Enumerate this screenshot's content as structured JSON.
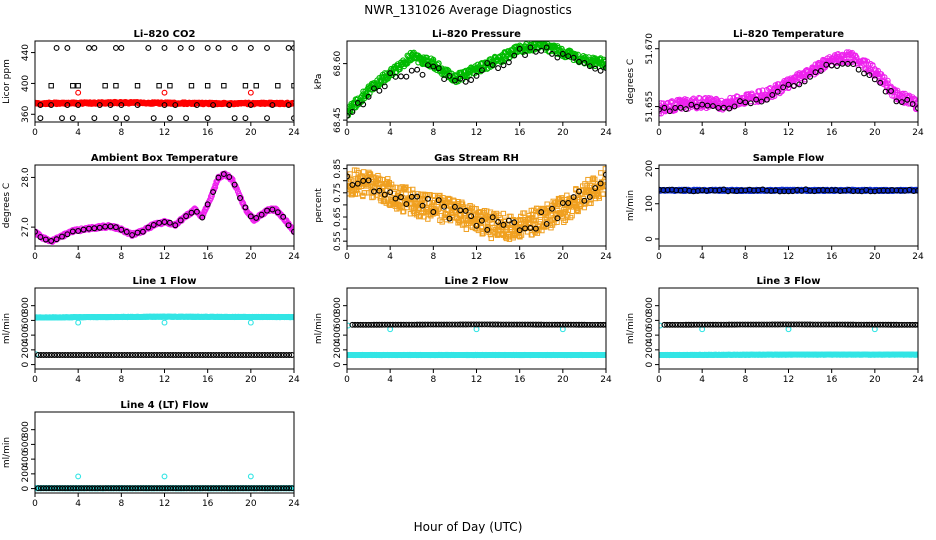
{
  "figure": {
    "title": "NWR_131026  Average Diagnostics",
    "xlabel": "Hour of Day (UTC)"
  },
  "chart_data": [
    {
      "type": "scatter",
      "title": "Li–820 CO2",
      "xlabel": "",
      "ylabel": "Licor ppm",
      "xlim": [
        0,
        24
      ],
      "ylim": [
        350,
        455
      ],
      "xticks": [
        0,
        4,
        8,
        12,
        16,
        20,
        24
      ],
      "yticks": [
        360,
        400,
        440
      ],
      "series": [
        {
          "color": "#ff0000",
          "marker": "circle",
          "kind": "band",
          "x_start": 0,
          "x_end": 24,
          "x_step": 0.1,
          "values": [
            374,
            375,
            374,
            374
          ],
          "amplitude": 1.2
        },
        {
          "color": "#ff0000",
          "marker": "circle",
          "x": [
            4,
            12,
            20
          ],
          "values": [
            388,
            388,
            388
          ]
        },
        {
          "color": "#000000",
          "marker": "circle",
          "x": [
            2,
            3,
            5,
            5.5,
            7.5,
            8,
            10.5,
            12,
            13.5,
            14.5,
            16,
            17,
            18.5,
            20,
            21.5,
            23.5,
            24
          ],
          "values": [
            446,
            446,
            446,
            446,
            446,
            446,
            446,
            446,
            446,
            446,
            446,
            446,
            446,
            446,
            446,
            446,
            446
          ]
        },
        {
          "color": "#000000",
          "marker": "square",
          "x": [
            1.5,
            3.5,
            4,
            6.5,
            7.5,
            9.5,
            11.5,
            12.5,
            14.5,
            16,
            17.5,
            19.5,
            20.5,
            22.5,
            24
          ],
          "values": [
            397,
            397,
            397,
            397,
            397,
            397,
            397,
            397,
            397,
            397,
            397,
            397,
            397,
            397,
            397
          ]
        },
        {
          "color": "#000000",
          "marker": "circle",
          "x": [
            0.5,
            1.5,
            3,
            4,
            6,
            7,
            8,
            9.5,
            12,
            13,
            15,
            16.5,
            18,
            20,
            22,
            23.5
          ],
          "values": [
            372,
            372,
            372,
            372,
            372,
            372,
            372,
            372,
            372,
            372,
            372,
            372,
            372,
            372,
            372,
            372
          ]
        },
        {
          "color": "#000000",
          "marker": "circle",
          "x": [
            0.5,
            2.5,
            3.5,
            5.5,
            7.5,
            8.5,
            11,
            12.5,
            14,
            16,
            18.5,
            19.5,
            21.5,
            24
          ],
          "values": [
            355,
            355,
            355,
            355,
            355,
            355,
            355,
            355,
            355,
            355,
            355,
            355,
            355,
            355
          ]
        }
      ]
    },
    {
      "type": "scatter",
      "title": "Li–820 Pressure",
      "xlabel": "",
      "ylabel": "kPa",
      "xlim": [
        0,
        24
      ],
      "ylim": [
        68.445,
        68.66
      ],
      "xticks": [
        0,
        4,
        8,
        12,
        16,
        20,
        24
      ],
      "yticks": [
        68.45,
        68.6
      ],
      "ytick_labels": [
        "68.45",
        "68.60"
      ],
      "series": [
        {
          "color": "#00bb00",
          "marker": "circle",
          "kind": "band",
          "x_start": 0,
          "x_end": 24,
          "x_step": 0.1,
          "values": [
            68.47,
            68.53,
            68.575,
            68.62,
            68.6,
            68.56,
            68.585,
            68.61,
            68.64,
            68.65,
            68.63,
            68.61,
            68.6
          ],
          "amplitude": 0.012
        },
        {
          "color": "#000000",
          "marker": "circle",
          "x_start": 0,
          "x_end": 24,
          "x_step": 0.5,
          "values": [
            68.46,
            68.51,
            68.56,
            68.58,
            68.585,
            68.55,
            68.575,
            68.6,
            68.63,
            68.64,
            68.615,
            68.6,
            68.59
          ],
          "amplitude": 0.015
        }
      ]
    },
    {
      "type": "scatter",
      "title": "Li–820 Temperature",
      "xlabel": "",
      "ylabel": "degrees C",
      "xlim": [
        0,
        24
      ],
      "ylim": [
        51.651,
        51.672
      ],
      "xticks": [
        0,
        4,
        8,
        12,
        16,
        20,
        24
      ],
      "yticks": [
        51.655,
        51.67
      ],
      "ytick_labels": [
        "51.655",
        "51.670"
      ],
      "series": [
        {
          "color": "#ee22ee",
          "marker": "circle",
          "kind": "band",
          "x_start": 0,
          "x_end": 24,
          "x_step": 0.1,
          "values": [
            51.6545,
            51.6555,
            51.656,
            51.6555,
            51.657,
            51.658,
            51.661,
            51.664,
            51.667,
            51.668,
            51.664,
            51.658,
            51.6555
          ],
          "amplitude": 0.0014
        },
        {
          "color": "#000000",
          "marker": "circle",
          "x_start": 0,
          "x_end": 24,
          "x_step": 0.5,
          "values": [
            51.654,
            51.655,
            51.6555,
            51.655,
            51.656,
            51.657,
            51.66,
            51.663,
            51.666,
            51.666,
            51.662,
            51.657,
            51.655
          ],
          "amplitude": 0.0008
        }
      ]
    },
    {
      "type": "scatter",
      "title": "Ambient Box Temperature",
      "xlabel": "",
      "ylabel": "degrees C",
      "xlim": [
        0,
        24
      ],
      "ylim": [
        26.62,
        28.25
      ],
      "xticks": [
        0,
        4,
        8,
        12,
        16,
        20,
        24
      ],
      "yticks": [
        27.0,
        28.0
      ],
      "ytick_labels": [
        "27.0",
        "28.0"
      ],
      "series": [
        {
          "color": "#ee22ee",
          "marker": "circle",
          "kind": "band",
          "x_start": 0,
          "x_end": 24,
          "x_step": 0.1,
          "x_nodes": [
            0,
            0.7,
            1.5,
            2.5,
            3.5,
            5.0,
            6.0,
            7.0,
            8.0,
            9.0,
            10.0,
            11.0,
            12.0,
            13.0,
            14.0,
            14.8,
            15.5,
            16.3,
            17.0,
            17.6,
            18.3,
            19.0,
            19.7,
            20.3,
            21.0,
            21.6,
            22.3,
            23.0,
            23.5,
            24.0
          ],
          "values": [
            26.9,
            26.78,
            26.72,
            26.82,
            26.92,
            26.97,
            27.0,
            27.02,
            26.95,
            26.85,
            26.92,
            27.05,
            27.1,
            27.05,
            27.22,
            27.35,
            27.2,
            27.6,
            28.0,
            28.07,
            27.95,
            27.6,
            27.3,
            27.15,
            27.25,
            27.35,
            27.35,
            27.2,
            27.05,
            26.92
          ],
          "amplitude": 0.03
        },
        {
          "color": "#000000",
          "marker": "circle",
          "x_start": 0,
          "x_end": 24,
          "x_step": 0.5,
          "x_nodes": [
            0,
            0.7,
            1.5,
            2.5,
            3.5,
            5.0,
            6.0,
            7.0,
            8.0,
            9.0,
            10.0,
            11.0,
            12.0,
            13.0,
            14.0,
            14.8,
            15.5,
            16.3,
            17.0,
            17.6,
            18.3,
            19.0,
            19.7,
            20.3,
            21.0,
            21.6,
            22.3,
            23.0,
            23.5,
            24.0
          ],
          "values": [
            26.9,
            26.78,
            26.72,
            26.82,
            26.92,
            26.97,
            27.0,
            27.02,
            26.95,
            26.85,
            26.92,
            27.05,
            27.1,
            27.05,
            27.22,
            27.35,
            27.2,
            27.6,
            28.0,
            28.07,
            27.95,
            27.6,
            27.3,
            27.15,
            27.25,
            27.35,
            27.35,
            27.2,
            27.05,
            26.92
          ],
          "amplitude": 0.015
        }
      ]
    },
    {
      "type": "scatter",
      "title": "Gas Stream RH",
      "xlabel": "",
      "ylabel": "percent",
      "xlim": [
        0,
        24
      ],
      "ylim": [
        0.53,
        0.865
      ],
      "xticks": [
        0,
        4,
        8,
        12,
        16,
        20,
        24
      ],
      "yticks": [
        0.55,
        0.6,
        0.65,
        0.7,
        0.75,
        0.8,
        0.85
      ],
      "ytick_labels": [
        "0.55",
        "",
        "0.65",
        "",
        "0.75",
        "",
        "0.85"
      ],
      "series": [
        {
          "color": "#f0a020",
          "marker": "square",
          "kind": "band",
          "x_start": 0,
          "x_end": 24,
          "x_step": 0.07,
          "values": [
            0.8,
            0.78,
            0.75,
            0.71,
            0.69,
            0.67,
            0.63,
            0.61,
            0.615,
            0.64,
            0.68,
            0.74,
            0.8
          ],
          "amplitude": 0.055
        },
        {
          "color": "#000000",
          "marker": "circle",
          "x_start": 0,
          "x_end": 24,
          "x_step": 0.5,
          "values": [
            0.8,
            0.78,
            0.75,
            0.71,
            0.69,
            0.67,
            0.63,
            0.61,
            0.615,
            0.64,
            0.68,
            0.74,
            0.8
          ],
          "amplitude": 0.035
        }
      ]
    },
    {
      "type": "scatter",
      "title": "Sample Flow",
      "xlabel": "",
      "ylabel": "ml/min",
      "xlim": [
        0,
        24
      ],
      "ylim": [
        -20,
        210
      ],
      "xticks": [
        0,
        4,
        8,
        12,
        16,
        20,
        24
      ],
      "yticks": [
        0,
        100,
        200
      ],
      "series": [
        {
          "color": "#1030d0",
          "marker": "circle",
          "kind": "band",
          "x_start": 0,
          "x_end": 24,
          "x_step": 0.08,
          "values": [
            138,
            138,
            138
          ],
          "amplitude": 2
        },
        {
          "color": "#000000",
          "marker": "circle",
          "x_start": 0,
          "x_end": 24,
          "x_step": 0.4,
          "values": [
            138,
            138,
            138
          ],
          "amplitude": 3
        }
      ]
    },
    {
      "type": "scatter",
      "title": "Line 1 Flow",
      "xlabel": "",
      "ylabel": "ml/min",
      "xlim": [
        0,
        24
      ],
      "ylim": [
        -60,
        1040
      ],
      "xticks": [
        0,
        4,
        8,
        12,
        16,
        20,
        24
      ],
      "yticks": [
        0,
        200,
        400,
        600,
        800
      ],
      "series": [
        {
          "color": "#33e5e5",
          "marker": "circle",
          "kind": "band",
          "x_start": 0,
          "x_end": 24,
          "x_step": 0.08,
          "values": [
            640,
            650,
            645
          ],
          "amplitude": 3
        },
        {
          "color": "#33e5e5",
          "marker": "circle",
          "x": [
            4,
            12,
            20
          ],
          "values": [
            570,
            570,
            570
          ]
        },
        {
          "color": "#33e5e5",
          "marker": "circle",
          "x": [
            0.1
          ],
          "values": [
            140
          ]
        },
        {
          "color": "#000000",
          "marker": "circle",
          "x_start": 0.3,
          "x_end": 24,
          "x_step": 0.25,
          "values": [
            130,
            130,
            130
          ],
          "amplitude": 0
        }
      ]
    },
    {
      "type": "scatter",
      "title": "Line 2 Flow",
      "xlabel": "",
      "ylabel": "ml/min",
      "xlim": [
        0,
        24
      ],
      "ylim": [
        -60,
        1040
      ],
      "xticks": [
        0,
        4,
        8,
        12,
        16,
        20,
        24
      ],
      "yticks": [
        0,
        200,
        400,
        600,
        800
      ],
      "series": [
        {
          "color": "#33e5e5",
          "marker": "circle",
          "kind": "band",
          "x_start": 0,
          "x_end": 24,
          "x_step": 0.08,
          "values": [
            130,
            130,
            130
          ],
          "amplitude": 2
        },
        {
          "color": "#33e5e5",
          "marker": "circle",
          "x": [
            0.1,
            4,
            12,
            20
          ],
          "values": [
            530,
            480,
            480,
            480
          ]
        },
        {
          "color": "#000000",
          "marker": "circle",
          "x_start": 0.5,
          "x_end": 24,
          "x_step": 0.25,
          "values": [
            540,
            545,
            540
          ],
          "amplitude": 0
        }
      ]
    },
    {
      "type": "scatter",
      "title": "Line 3 Flow",
      "xlabel": "",
      "ylabel": "ml/min",
      "xlim": [
        0,
        24
      ],
      "ylim": [
        -60,
        1040
      ],
      "xticks": [
        0,
        4,
        8,
        12,
        16,
        20,
        24
      ],
      "yticks": [
        0,
        200,
        400,
        600,
        800
      ],
      "series": [
        {
          "color": "#33e5e5",
          "marker": "circle",
          "kind": "band",
          "x_start": 0,
          "x_end": 24,
          "x_step": 0.08,
          "values": [
            130,
            135,
            135
          ],
          "amplitude": 2
        },
        {
          "color": "#33e5e5",
          "marker": "circle",
          "x": [
            0.1,
            4,
            12,
            20
          ],
          "values": [
            530,
            480,
            480,
            480
          ]
        },
        {
          "color": "#000000",
          "marker": "circle",
          "x_start": 0.5,
          "x_end": 24,
          "x_step": 0.25,
          "values": [
            540,
            545,
            540
          ],
          "amplitude": 0
        }
      ]
    },
    {
      "type": "scatter",
      "title": "Line 4 (LT) Flow",
      "xlabel": "",
      "ylabel": "ml/min",
      "xlim": [
        0,
        24
      ],
      "ylim": [
        -60,
        1040
      ],
      "xticks": [
        0,
        4,
        8,
        12,
        16,
        20,
        24
      ],
      "yticks": [
        0,
        200,
        400,
        600,
        800
      ],
      "series": [
        {
          "color": "#33e5e5",
          "marker": "circle",
          "kind": "band",
          "x_start": 0,
          "x_end": 24,
          "x_step": 0.08,
          "values": [
            5,
            5,
            5
          ],
          "amplitude": 1
        },
        {
          "color": "#33e5e5",
          "marker": "circle",
          "x": [
            4,
            12,
            20
          ],
          "values": [
            165,
            165,
            165
          ]
        },
        {
          "color": "#000000",
          "marker": "circle",
          "x_start": 0.3,
          "x_end": 24,
          "x_step": 0.25,
          "values": [
            5,
            5,
            5
          ],
          "amplitude": 0
        }
      ]
    }
  ]
}
